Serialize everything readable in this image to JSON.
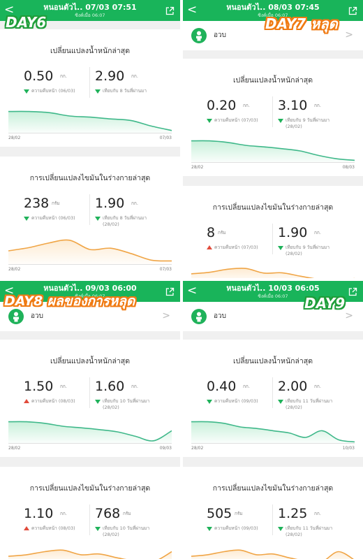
{
  "colors": {
    "header_green": "#19b45a",
    "weight_line": "#3fb88a",
    "weight_fill": "#c8f0da",
    "fat_line": "#f0a546",
    "fat_fill": "#fdebd2",
    "down_arrow": "#1fb25a",
    "up_arrow": "#e14b3b"
  },
  "icons": {
    "back": "chevron-left-icon",
    "share": "share-icon",
    "avatar": "person-icon",
    "trend_down": "triangle-down-icon",
    "trend_up": "triangle-up-icon"
  },
  "panels": [
    {
      "header": {
        "back": "<",
        "title": "หนอนตัวไ.. 07/03 07:51",
        "sync": "ซิงค์เมื่อ 06:07"
      },
      "overlay": {
        "text": "DAY6",
        "style": "green"
      },
      "user": null,
      "weight": {
        "title": "เปลี่ยนแปลงน้ำหนักล่าสุด",
        "m1": {
          "value": "0.50",
          "unit": "กก.",
          "dir": "down",
          "sub": "ความคืบหน้า (06/03)",
          "sub2": ""
        },
        "m2": {
          "value": "2.90",
          "unit": "กก.",
          "dir": "down",
          "sub": "เทียบกับ 8 วันที่ผ่านมา",
          "sub2": ""
        },
        "chart": {
          "start": "28/02",
          "end": "07/03",
          "series": [
            0.95,
            0.95,
            0.9,
            0.75,
            0.7,
            0.62,
            0.55,
            0.3,
            0.1
          ]
        }
      },
      "fat": {
        "title": "การเปลี่ยนแปลงไขมันในร่างกายล่าสุด",
        "m1": {
          "value": "238",
          "unit": "กรัม",
          "dir": "down",
          "sub": "ความคืบหน้า (06/03)",
          "sub2": ""
        },
        "m2": {
          "value": "1.90",
          "unit": "กก.",
          "dir": "down",
          "sub": "เทียบกับ 8 วันที่ผ่านมา",
          "sub2": "(28/02)"
        },
        "chart": {
          "start": "28/02",
          "end": "07/03",
          "series": [
            0.5,
            0.62,
            0.8,
            0.9,
            0.55,
            0.6,
            0.4,
            0.15,
            0.12
          ]
        }
      }
    },
    {
      "header": {
        "back": "<",
        "title": "หนอนตัวไ.. 08/03 07:45",
        "sync": "ซิงค์เมื่อ 06:07"
      },
      "overlay": {
        "text": "DAY7 หลุด",
        "style": "orange"
      },
      "user": {
        "name": "อวบ",
        "chevron": ">"
      },
      "weight": {
        "title": "เปลี่ยนแปลงน้ำหนักล่าสุด",
        "m1": {
          "value": "0.20",
          "unit": "กก.",
          "dir": "down",
          "sub": "ความคืบหน้า (07/03)",
          "sub2": ""
        },
        "m2": {
          "value": "3.10",
          "unit": "กก.",
          "dir": "down",
          "sub": "เทียบกับ 9 วันที่ผ่านมา",
          "sub2": "(28/02)"
        },
        "chart": {
          "start": "28/02",
          "end": "08/03",
          "series": [
            0.95,
            0.95,
            0.88,
            0.75,
            0.68,
            0.6,
            0.5,
            0.3,
            0.15,
            0.08
          ]
        }
      },
      "fat": {
        "title": "การเปลี่ยนแปลงไขมันในร่างกายล่าสุด",
        "m1": {
          "value": "8",
          "unit": "กรัม",
          "dir": "up",
          "sub": "ความคืบหน้า (07/03)",
          "sub2": ""
        },
        "m2": {
          "value": "1.90",
          "unit": "กก.",
          "dir": "down",
          "sub": "เทียบกับ 9 วันที่ผ่านมา",
          "sub2": "(28/02)"
        },
        "chart": {
          "start": "",
          "end": "",
          "series": [
            0.55,
            0.65,
            0.85,
            0.9,
            0.6,
            0.62,
            0.4,
            0.2,
            0.12,
            0.25
          ]
        }
      }
    },
    {
      "header": {
        "back": "<",
        "title": "หนอนตัวไ.. 09/03 06:00",
        "sync": "ซิงค์เมื่อ 06:07"
      },
      "overlay": {
        "text": "DAY8 ผลของการหลุด",
        "style": "orange"
      },
      "user": {
        "name": "อวบ",
        "chevron": ">"
      },
      "weight": {
        "title": "เปลี่ยนแปลงน้ำหนักล่าสุด",
        "m1": {
          "value": "1.50",
          "unit": "กก.",
          "dir": "up",
          "sub": "ความคืบหน้า (08/03)",
          "sub2": ""
        },
        "m2": {
          "value": "1.60",
          "unit": "กก.",
          "dir": "down",
          "sub": "เทียบกับ 10 วันที่ผ่านมา",
          "sub2": "(28/02)"
        },
        "chart": {
          "start": "28/02",
          "end": "09/03",
          "series": [
            0.95,
            0.95,
            0.88,
            0.75,
            0.68,
            0.6,
            0.5,
            0.3,
            0.1,
            0.55
          ]
        }
      },
      "fat": {
        "title": "การเปลี่ยนแปลงไขมันในร่างกายล่าสุด",
        "m1": {
          "value": "1.10",
          "unit": "กก.",
          "dir": "up",
          "sub": "ความคืบหน้า (08/03)",
          "sub2": ""
        },
        "m2": {
          "value": "768",
          "unit": "กรัม",
          "dir": "down",
          "sub": "เทียบกับ 10 วันที่ผ่านมา",
          "sub2": "(28/02)"
        },
        "chart": {
          "start": "",
          "end": "",
          "series": [
            0.45,
            0.55,
            0.75,
            0.85,
            0.55,
            0.6,
            0.35,
            0.15,
            0.1,
            0.75
          ]
        }
      }
    },
    {
      "header": {
        "back": "<",
        "title": "หนอนตัวไ.. 10/03 06:05",
        "sync": "ซิงค์เมื่อ 06:07"
      },
      "overlay": {
        "text": "DAY9",
        "style": "green"
      },
      "user": {
        "name": "อวบ",
        "chevron": ">"
      },
      "weight": {
        "title": "เปลี่ยนแปลงน้ำหนักล่าสุด",
        "m1": {
          "value": "0.40",
          "unit": "กก.",
          "dir": "down",
          "sub": "ความคืบหน้า (09/03)",
          "sub2": ""
        },
        "m2": {
          "value": "2.00",
          "unit": "กก.",
          "dir": "down",
          "sub": "เทียบกับ 11 วันที่ผ่านมา",
          "sub2": "(28/02)"
        },
        "chart": {
          "start": "28/02",
          "end": "10/03",
          "series": [
            0.95,
            0.95,
            0.88,
            0.72,
            0.65,
            0.55,
            0.45,
            0.25,
            0.55,
            0.15,
            0.05
          ]
        }
      },
      "fat": {
        "title": "การเปลี่ยนแปลงไขมันในร่างกายล่าสุด",
        "m1": {
          "value": "505",
          "unit": "กรัม",
          "dir": "down",
          "sub": "ความคืบหน้า (09/03)",
          "sub2": ""
        },
        "m2": {
          "value": "1.25",
          "unit": "กก.",
          "dir": "down",
          "sub": "เทียบกับ 11 วันที่ผ่านมา",
          "sub2": "(28/02)"
        },
        "chart": {
          "start": "",
          "end": "",
          "series": [
            0.45,
            0.55,
            0.75,
            0.85,
            0.55,
            0.6,
            0.35,
            0.15,
            0.1,
            0.75,
            0.2
          ]
        }
      }
    }
  ]
}
